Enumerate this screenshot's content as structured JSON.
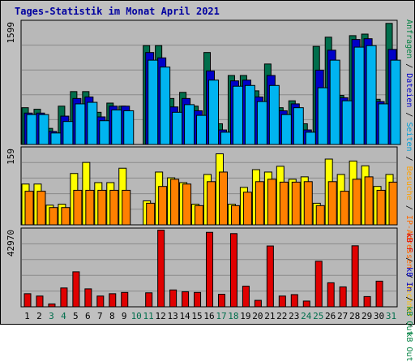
{
  "title": "Tages-Statistik im Monat April 2021",
  "colors": {
    "background": "#c0c0c0",
    "plot_background": "#b8b8b8",
    "grid": "#8a8a8a",
    "title": "#0000a0",
    "weekend_day": "#006e4c",
    "weekday_day": "#000000"
  },
  "right_labels": {
    "top": [
      {
        "text": "Anfragen",
        "color": "#008040"
      },
      {
        "text": " / ",
        "color": "#000000"
      },
      {
        "text": "Dateien",
        "color": "#0000c8"
      },
      {
        "text": " / ",
        "color": "#000000"
      },
      {
        "text": "Seiten",
        "color": "#00a0d8"
      },
      {
        "text": " / ",
        "color": "#000000"
      },
      {
        "text": "Besuche",
        "color": "#ffa000"
      },
      {
        "text": " / ",
        "color": "#000000"
      },
      {
        "text": "IP-Adressen",
        "color": "#ff6a00"
      },
      {
        "text": " / ",
        "color": "#000000"
      },
      {
        "text": "Rechner",
        "color": "#ffc000"
      },
      {
        "text": " / ",
        "color": "#000000"
      },
      {
        "text": "kB Out",
        "color": "#008040"
      }
    ],
    "bottom": [
      {
        "text": "kB F",
        "color": "#e00000"
      },
      {
        "text": " / ",
        "color": "#000000"
      },
      {
        "text": "kB In",
        "color": "#0000c8"
      },
      {
        "text": " / ",
        "color": "#000000"
      },
      {
        "text": "kB Out",
        "color": "#008040"
      }
    ]
  },
  "chart_data": {
    "type": "bar",
    "title": "Tages-Statistik im Monat April 2021",
    "categories": [
      "1",
      "2",
      "3",
      "4",
      "5",
      "6",
      "7",
      "8",
      "9",
      "10",
      "11",
      "12",
      "13",
      "14",
      "15",
      "16",
      "17",
      "18",
      "19",
      "20",
      "21",
      "22",
      "23",
      "24",
      "25",
      "26",
      "27",
      "28",
      "29",
      "30",
      "31"
    ],
    "weekend_days": [
      "3",
      "4",
      "10",
      "11",
      "17",
      "18",
      "24",
      "25",
      "31"
    ],
    "panels": [
      {
        "name": "requests",
        "max_label": "1599",
        "ylim": [
          0,
          1599
        ],
        "series": [
          {
            "name": "Anfragen",
            "color": "#006e4c",
            "values": [
              480,
              460,
              210,
              500,
              690,
              690,
              420,
              540,
              500,
              0,
              1290,
              1290,
              600,
              680,
              500,
              1200,
              270,
              900,
              900,
              700,
              1050,
              480,
              570,
              270,
              1280,
              1400,
              640,
              1420,
              1440,
              590,
              1580
            ]
          },
          {
            "name": "Dateien",
            "color": "#0000c8",
            "values": [
              410,
              410,
              170,
              370,
              600,
              620,
              360,
              500,
              500,
              0,
              1200,
              1130,
              490,
              600,
              440,
              960,
              190,
              830,
              840,
              620,
              900,
              440,
              530,
              190,
              970,
              1230,
              610,
              1370,
              1380,
              560,
              1240
            ]
          },
          {
            "name": "Seiten",
            "color": "#00b4f0",
            "values": [
              390,
              390,
              150,
              300,
              530,
              550,
              310,
              450,
              440,
              0,
              1100,
              1010,
              420,
              520,
              380,
              840,
              160,
              760,
              770,
              560,
              770,
              390,
              480,
              160,
              740,
              1100,
              570,
              1270,
              1290,
              530,
              1100
            ]
          }
        ]
      },
      {
        "name": "visits",
        "max_label": "159",
        "ylim": [
          0,
          159
        ],
        "series": [
          {
            "name": "Rechner",
            "color": "#ffff00",
            "values": [
              85,
              85,
              41,
              43,
              107,
              130,
              88,
              88,
              118,
              0,
              50,
              110,
              98,
              88,
              43,
              105,
              148,
              43,
              78,
              115,
              110,
              122,
              95,
              100,
              45,
              137,
              105,
              133,
              123,
              80,
              105
            ]
          },
          {
            "name": "Besuche",
            "color": "#ff8000",
            "values": [
              70,
              70,
              36,
              36,
              72,
              72,
              72,
              72,
              72,
              0,
              45,
              80,
              95,
              85,
              40,
              90,
              110,
              40,
              68,
              90,
              95,
              89,
              89,
              90,
              40,
              90,
              70,
              95,
              100,
              72,
              89
            ]
          }
        ]
      },
      {
        "name": "traffic",
        "max_label": "42970",
        "ylim": [
          0,
          42970
        ],
        "series": [
          {
            "name": "kB F",
            "color": "#e00000",
            "values": [
              7300,
              6000,
              1600,
              10500,
              19500,
              10000,
              6000,
              7300,
              8000,
              0,
              7800,
              42700,
              9400,
              8400,
              8000,
              41500,
              7000,
              40800,
              11500,
              3600,
              33900,
              6000,
              6800,
              3200,
              25400,
              13400,
              11100,
              34000,
              5700,
              14300,
              0
            ]
          }
        ]
      }
    ]
  }
}
